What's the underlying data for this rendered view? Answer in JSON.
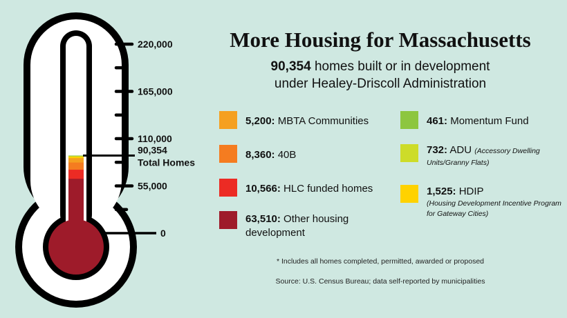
{
  "title": "More Housing for Massachusetts",
  "subtitle": {
    "total": "90,354",
    "line1_rest": "homes built or in development",
    "line2": "under Healey-Driscoll Administration"
  },
  "thermometer": {
    "tick_labels": [
      "220,000",
      "165,000",
      "110,000",
      "55,000",
      "0"
    ],
    "marker_value_label": "90,354",
    "marker_text_label": "Total Homes"
  },
  "legend": [
    {
      "value": "5,200:",
      "label": "MBTA Communities",
      "note": "",
      "color": "#f5a020"
    },
    {
      "value": "8,360:",
      "label": "40B",
      "note": "",
      "color": "#f57c20"
    },
    {
      "value": "10,566:",
      "label": "HLC funded homes",
      "note": "",
      "color": "#ec2b24"
    },
    {
      "value": "63,510:",
      "label": "Other housing development",
      "note": "",
      "color": "#9e1b2a"
    },
    {
      "value": "461:",
      "label": "Momentum Fund",
      "note": "",
      "color": "#8dc63f"
    },
    {
      "value": "732:",
      "label": "ADU",
      "note": "(Accessory Dwelling Units/Granny Flats)",
      "color": "#cddc29"
    },
    {
      "value": "1,525:",
      "label": "HDIP",
      "note": "(Housing Development Incentive Program for Gateway Cities)",
      "color": "#ffd200"
    }
  ],
  "footnote": "* Includes all homes completed, permitted, awarded or proposed",
  "source": "Source: U.S. Census Bureau; data self-reported by municipalities",
  "chart_data": {
    "type": "bar",
    "title": "More Housing for Massachusetts",
    "ylim": [
      0,
      220000
    ],
    "yticks": [
      0,
      55000,
      110000,
      165000,
      220000
    ],
    "total": 90354,
    "stack_order_bottom_to_top": [
      "Other housing development",
      "HLC funded homes",
      "40B",
      "MBTA Communities",
      "HDIP",
      "ADU",
      "Momentum Fund"
    ],
    "series": [
      {
        "name": "MBTA Communities",
        "values": [
          5200
        ],
        "color": "#f5a020"
      },
      {
        "name": "40B",
        "values": [
          8360
        ],
        "color": "#f57c20"
      },
      {
        "name": "HLC funded homes",
        "values": [
          10566
        ],
        "color": "#ec2b24"
      },
      {
        "name": "Other housing development",
        "values": [
          63510
        ],
        "color": "#9e1b2a"
      },
      {
        "name": "Momentum Fund",
        "values": [
          461
        ],
        "color": "#8dc63f"
      },
      {
        "name": "ADU",
        "values": [
          732
        ],
        "color": "#cddc29"
      },
      {
        "name": "HDIP",
        "values": [
          1525
        ],
        "color": "#ffd200"
      }
    ]
  }
}
